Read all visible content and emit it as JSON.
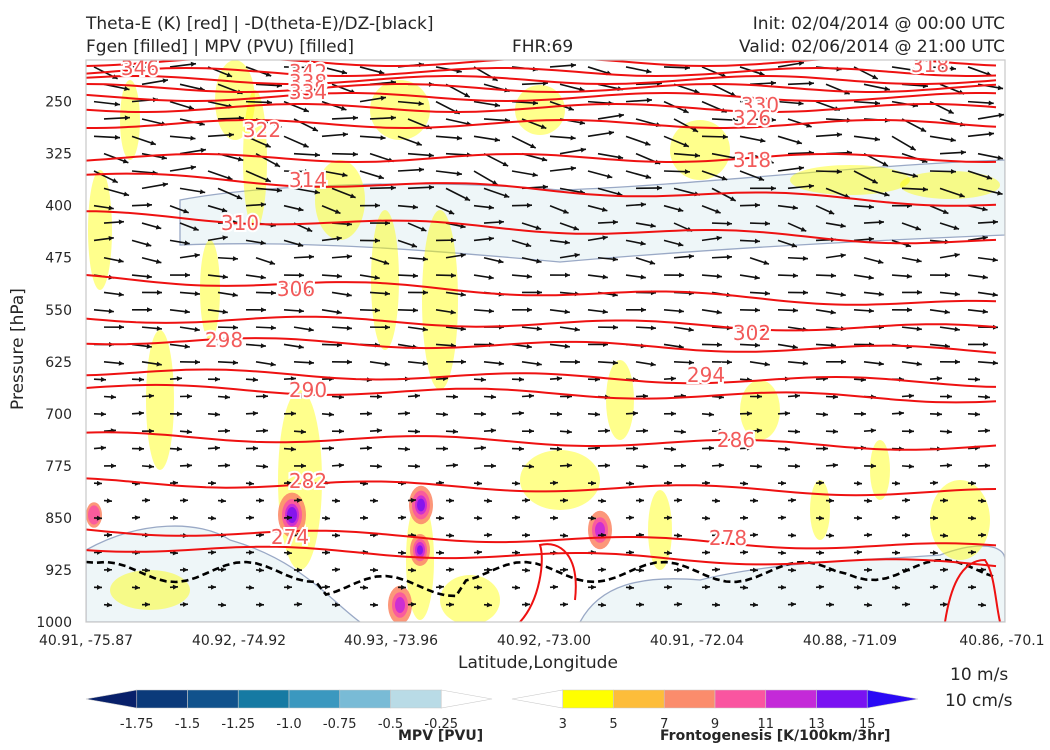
{
  "header": {
    "title_left_1": "Theta-E (K) [red] | -D(theta-E)/DZ-[black]",
    "title_left_2": "Fgen [filled] | MPV (PVU) [filled]",
    "fhr": "FHR:69",
    "init": "Init: 02/04/2014 @ 00:00 UTC",
    "valid": "Valid: 02/06/2014 @ 21:00 UTC"
  },
  "colors": {
    "theta_e": "#ee1111",
    "theta_e_label": "#f25a5a",
    "stability": "#000000",
    "mpv_outline": "#9aa9c6",
    "mpv_fill": "#eef6f8",
    "fgen": [
      "#ffff00",
      "#fdb53c",
      "#fc8c6c",
      "#fa55a0",
      "#c62ad8",
      "#7f12f0",
      "#2a0af5"
    ]
  },
  "chart_data": {
    "type": "cross-section",
    "xlabel": "Latitude,Longitude",
    "ylabel": "Pressure [hPa]",
    "x_ticks": [
      "40.91, -75.87",
      "40.92, -74.92",
      "40.93, -73.96",
      "40.92, -73.00",
      "40.91, -72.04",
      "40.88, -71.09",
      "40.86, -70.1"
    ],
    "y_ticks": [
      "250",
      "325",
      "400",
      "475",
      "550",
      "625",
      "700",
      "775",
      "850",
      "925",
      "1000"
    ],
    "ylim": [
      1000,
      190
    ],
    "theta_e_contours": [
      {
        "value": "346"
      },
      {
        "value": "342"
      },
      {
        "value": "338"
      },
      {
        "value": "334"
      },
      {
        "value": "330"
      },
      {
        "value": "326"
      },
      {
        "value": "322"
      },
      {
        "value": "318"
      },
      {
        "value": "314"
      },
      {
        "value": "310"
      },
      {
        "value": "306"
      },
      {
        "value": "302"
      },
      {
        "value": "298"
      },
      {
        "value": "294"
      },
      {
        "value": "290"
      },
      {
        "value": "286"
      },
      {
        "value": "282"
      },
      {
        "value": "278"
      },
      {
        "value": "274"
      },
      {
        "value": "318"
      }
    ],
    "wind_legend": [
      "10 m/s",
      "10 cm/s"
    ],
    "mpv_colorbar": {
      "label": "MPV [PVU]",
      "ticks": [
        "-1.75",
        "-1.5",
        "-1.25",
        "-1.0",
        "-0.75",
        "-0.5",
        "-0.25"
      ],
      "colors": [
        "#08206a",
        "#0b3a7a",
        "#11528c",
        "#167aa3",
        "#3b98bf",
        "#79bbd6",
        "#b9dbe6",
        "#ffffff"
      ]
    },
    "fgen_colorbar": {
      "label": "Frontogenesis [K/100km/3hr]",
      "ticks": [
        "3",
        "5",
        "7",
        "9",
        "11",
        "13",
        "15"
      ],
      "colors": [
        "#ffffff",
        "#ffff00",
        "#fdbd3a",
        "#fb8c6c",
        "#fa55a0",
        "#c42ad8",
        "#7a12f2",
        "#2a0af5"
      ]
    }
  }
}
